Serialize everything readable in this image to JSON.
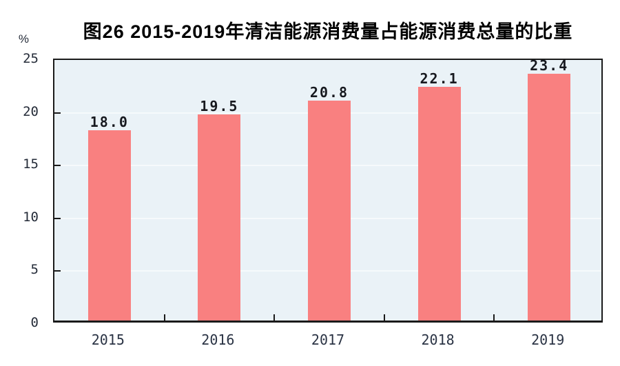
{
  "chart_data": {
    "type": "bar",
    "title": "图26  2015-2019年清洁能源消费量占能源消费总量的比重",
    "unit_label": "%",
    "categories": [
      "2015",
      "2016",
      "2017",
      "2018",
      "2019"
    ],
    "values": [
      18.0,
      19.5,
      20.8,
      22.1,
      23.4
    ],
    "value_labels": [
      "18.0",
      "19.5",
      "20.8",
      "22.1",
      "23.4"
    ],
    "xlabel": "",
    "ylabel": "%",
    "y_ticks": [
      0,
      5,
      10,
      15,
      20,
      25
    ],
    "ylim": [
      0,
      25
    ],
    "grid": true,
    "legend": "none",
    "colors": {
      "bar": "#f98080",
      "plot_background": "#eaf2f7",
      "gridline": "#f6fafc",
      "axis": "#1a1a1a",
      "text": "#242b38"
    }
  }
}
